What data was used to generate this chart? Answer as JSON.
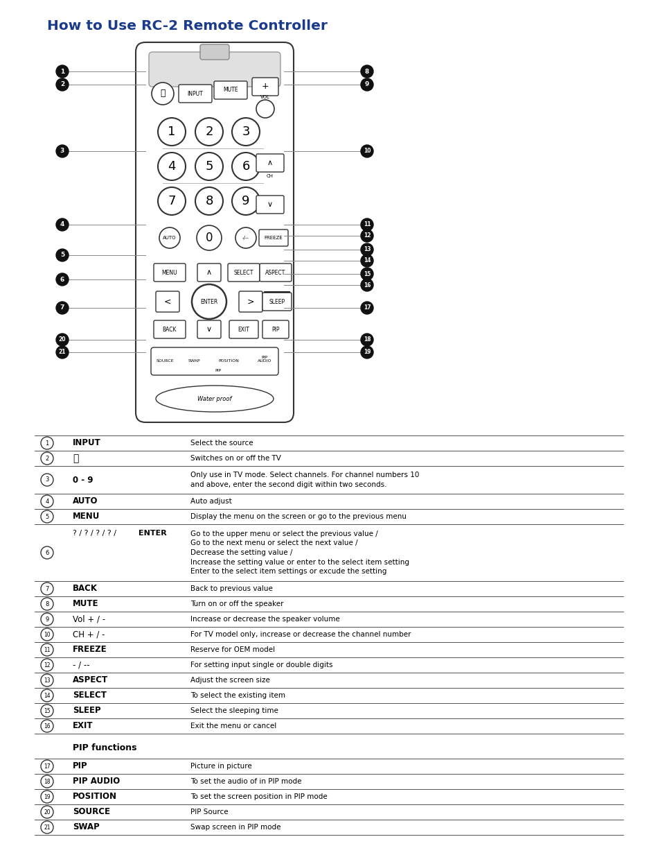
{
  "title": "How to Use RC-2 Remote Controller",
  "title_color": "#1a3a8c",
  "title_fontsize": 14.5,
  "bg_color": "#ffffff",
  "table_rows": [
    {
      "num": "1",
      "label": "INPUT",
      "bold": true,
      "label_normal": false,
      "desc": "Select the source",
      "rh": 22
    },
    {
      "num": "2",
      "label": "⏻",
      "bold": false,
      "label_normal": true,
      "desc": "Switches on or off the TV",
      "rh": 22
    },
    {
      "num": "3",
      "label": "0 - 9",
      "bold": true,
      "label_normal": false,
      "desc": "Only use in TV mode. Select channels. For channel numbers 10\nand above, enter the second digit within two seconds.",
      "rh": 40
    },
    {
      "num": "4",
      "label": "AUTO",
      "bold": true,
      "label_normal": false,
      "desc": "Auto adjust",
      "rh": 22
    },
    {
      "num": "5",
      "label": "MENU",
      "bold": true,
      "label_normal": false,
      "desc": "Display the menu on the screen or go to the previous menu",
      "rh": 22
    },
    {
      "num": "6",
      "label": "? / ? / ? / ? / ENTER",
      "bold": false,
      "label_normal": true,
      "desc": "Go to the upper menu or select the previous value /\nGo to the next menu or select the next value /\nDecrease the setting value /\nIncrease the setting value or enter to the select item setting\nEnter to the select item settings or excude the setting",
      "rh": 82
    },
    {
      "num": "7",
      "label": "BACK",
      "bold": true,
      "label_normal": false,
      "desc": "Back to previous value",
      "rh": 22
    },
    {
      "num": "8",
      "label": "MUTE",
      "bold": true,
      "label_normal": false,
      "desc": "Turn on or off the speaker",
      "rh": 22
    },
    {
      "num": "9",
      "label": "Vol + / -",
      "bold": false,
      "label_normal": true,
      "desc": "Increase or decrease the speaker volume",
      "rh": 22
    },
    {
      "num": "10",
      "label": "CH + / -",
      "bold": false,
      "label_normal": true,
      "desc": "For TV model only, increase or decrease the channel number",
      "rh": 22
    },
    {
      "num": "11",
      "label": "FREEZE",
      "bold": true,
      "label_normal": false,
      "desc": "Reserve for OEM model",
      "rh": 22
    },
    {
      "num": "12",
      "label": "- / --",
      "bold": false,
      "label_normal": true,
      "desc": "For setting input single or double digits",
      "rh": 22
    },
    {
      "num": "13",
      "label": "ASPECT",
      "bold": true,
      "label_normal": false,
      "desc": "Adjust the screen size",
      "rh": 22
    },
    {
      "num": "14",
      "label": "SELECT",
      "bold": true,
      "label_normal": false,
      "desc": "To select the existing item",
      "rh": 22
    },
    {
      "num": "15",
      "label": "SLEEP",
      "bold": true,
      "label_normal": false,
      "desc": "Select the sleeping time",
      "rh": 22
    },
    {
      "num": "16",
      "label": "EXIT",
      "bold": true,
      "label_normal": false,
      "desc": "Exit the menu or cancel",
      "rh": 22
    }
  ],
  "pip_rows": [
    {
      "num": "17",
      "label": "PIP",
      "bold": true,
      "desc": "Picture in picture",
      "rh": 22
    },
    {
      "num": "18",
      "label": "PIP AUDIO",
      "bold": true,
      "desc": "To set the audio of in PIP mode",
      "rh": 22
    },
    {
      "num": "19",
      "label": "POSITION",
      "bold": true,
      "desc": "To set the screen position in PIP mode",
      "rh": 22
    },
    {
      "num": "20",
      "label": "SOURCE",
      "bold": true,
      "desc": "PIP Source",
      "rh": 22
    },
    {
      "num": "21",
      "label": "SWAP",
      "bold": true,
      "desc": "Swap screen in PIP mode",
      "rh": 22
    }
  ]
}
